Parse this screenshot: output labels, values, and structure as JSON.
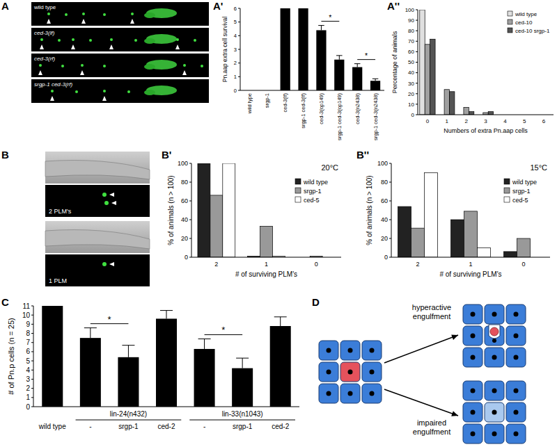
{
  "panel_labels": [
    "A",
    "A'",
    "A''",
    "B",
    "B'",
    "B''",
    "C",
    "D"
  ],
  "image_labels": {
    "A": [
      "wild type",
      "ced-3(lf)",
      "ced-3(rf)",
      "srgp-1 ced-3(rf)"
    ],
    "B": [
      "2 PLM's",
      "1 PLM"
    ]
  },
  "diagram": {
    "labels": [
      "hyperactive engulfment",
      "impaired engulfment"
    ]
  },
  "chart_data": [
    {
      "type": "bar",
      "y_label": "Pn.aap extra cell survival",
      "categories": [
        "wild type",
        "srgp-1",
        "ced-3(lf)",
        "srgp-1 ced-3(lf)",
        "ced-3(op149)",
        "srgp-1 ced-3(op149)",
        "ced-3(n2438)",
        "srgp-1 ced-3(n2438)"
      ],
      "values": [
        0,
        0,
        6,
        6,
        4.4,
        2.25,
        1.7,
        0.7
      ],
      "errors": [
        null,
        null,
        null,
        null,
        0.35,
        0.3,
        0.25,
        0.15
      ],
      "color": "#000000",
      "ylim": [
        0,
        6
      ],
      "yticks": [
        0,
        1,
        2,
        3,
        4,
        5,
        6
      ],
      "annotations": [
        {
          "text": "*",
          "between": [
            4,
            5
          ]
        },
        {
          "text": "*",
          "between": [
            6,
            7
          ]
        }
      ]
    },
    {
      "type": "bar",
      "x_label": "Numbers of extra Pn.aap cells",
      "y_label": "Percentage of animals",
      "categories": [
        "0",
        "1",
        "2",
        "3",
        "4",
        "5",
        "6"
      ],
      "series": [
        {
          "name": "wild type",
          "color": "#e0e0e0",
          "values": [
            100,
            0,
            0,
            0,
            0,
            0,
            0
          ]
        },
        {
          "name": "ced-10",
          "color": "#a0a0a0",
          "values": [
            67,
            24,
            7,
            2,
            0,
            0,
            0
          ]
        },
        {
          "name": "ced-10 srgp-1",
          "color": "#555555",
          "values": [
            72,
            22,
            3,
            3,
            0,
            0,
            0
          ]
        }
      ],
      "ylim": [
        0,
        100
      ],
      "yticks": [
        0,
        10,
        20,
        30,
        40,
        50,
        60,
        70,
        80,
        90,
        100
      ],
      "legend": "upper right"
    },
    {
      "type": "bar",
      "title": "20°C",
      "x_label": "# of surviving PLM's",
      "y_label": "% of animals (n > 100)",
      "categories": [
        "2",
        "1",
        "0"
      ],
      "series": [
        {
          "name": "wild type",
          "color": "#222222",
          "values": [
            100,
            1,
            0
          ]
        },
        {
          "name": "srgp-1",
          "color": "#999999",
          "values": [
            66,
            33,
            1
          ]
        },
        {
          "name": "ced-5",
          "color": "#ffffff",
          "values": [
            100,
            1,
            0
          ]
        }
      ],
      "ylim": [
        0,
        100
      ],
      "yticks": [
        0,
        20,
        40,
        60,
        80,
        100
      ],
      "legend": "upper right"
    },
    {
      "type": "bar",
      "title": "15°C",
      "x_label": "# of surviving PLM's",
      "y_label": "% of animals (n > 100)",
      "categories": [
        "2",
        "1",
        "0"
      ],
      "series": [
        {
          "name": "wild type",
          "color": "#222222",
          "values": [
            54,
            40,
            6
          ]
        },
        {
          "name": "srgp-1",
          "color": "#999999",
          "values": [
            31,
            49,
            20
          ]
        },
        {
          "name": "ced-5",
          "color": "#ffffff",
          "values": [
            90,
            10,
            0
          ]
        }
      ],
      "ylim": [
        0,
        100
      ],
      "yticks": [
        0,
        20,
        40,
        60,
        80,
        100
      ],
      "legend": "upper right"
    },
    {
      "type": "bar",
      "y_label": "# of Pn.p cells (n = 25)",
      "categories": [
        "wild type",
        "-",
        "srgp-1",
        "ced-2",
        "-",
        "srgp-1",
        "ced-2"
      ],
      "groups": [
        null,
        "lin-24(n432)",
        "lin-24(n432)",
        "lin-24(n432)",
        "lin-33(n1043)",
        "lin-33(n1043)",
        "lin-33(n1043)"
      ],
      "values": [
        11,
        7.5,
        5.4,
        9.6,
        6.3,
        4.2,
        8.8
      ],
      "errors": [
        null,
        1.1,
        1.3,
        0.9,
        1.1,
        1.1,
        1.0
      ],
      "color": "#000000",
      "ylim": [
        0,
        11
      ],
      "yticks": [
        0,
        1,
        2,
        3,
        4,
        5,
        6,
        7,
        8,
        9,
        10,
        11
      ],
      "annotations": [
        {
          "text": "*",
          "between": [
            1,
            2
          ]
        },
        {
          "text": "*",
          "between": [
            4,
            5
          ]
        }
      ]
    }
  ]
}
